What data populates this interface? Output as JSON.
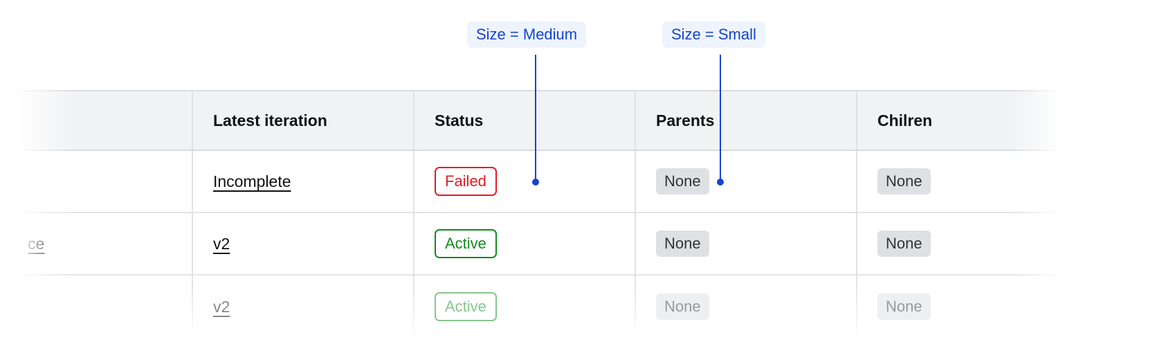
{
  "annotations": [
    {
      "label": "Size = Medium"
    },
    {
      "label": "Size = Small"
    }
  ],
  "table": {
    "columns": [
      "",
      "Latest iteration",
      "Status",
      "Parents",
      "Chilren"
    ],
    "rows": [
      {
        "name": "",
        "iteration": "Incomplete",
        "status": "Failed",
        "parents": "None",
        "children": "None"
      },
      {
        "name": "ce",
        "iteration": "v2",
        "status": "Active",
        "parents": "None",
        "children": "None"
      },
      {
        "name": "",
        "iteration": "v2",
        "status": "Active",
        "parents": "None",
        "children": "None"
      }
    ]
  },
  "colors": {
    "annotation": "#1444cc",
    "failed": "#e21b23",
    "active": "#138a1e",
    "header_bg": "#f1f2f4"
  }
}
